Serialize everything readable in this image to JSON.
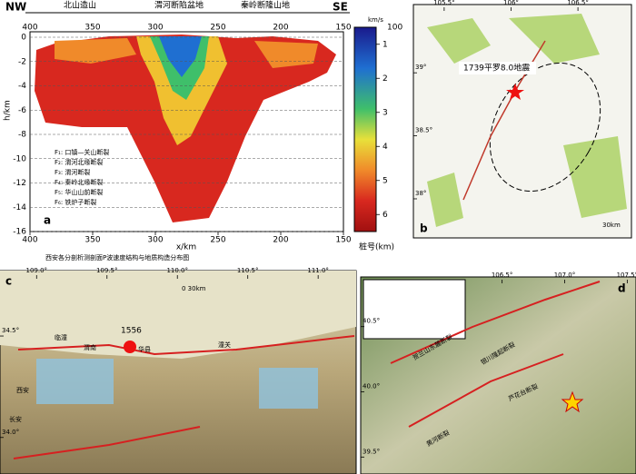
{
  "panel_a": {
    "label": "a",
    "left": "NW",
    "right": "SE",
    "regions": [
      "北山造山",
      "渭河断陷盆地",
      "秦岭断隆山地"
    ],
    "xlabel": "x/km",
    "ylabel": "h/km",
    "xcaption": "桩号(km)",
    "xlim": [
      400,
      150
    ],
    "xticks": [
      400,
      350,
      300,
      250,
      200,
      150
    ],
    "ylim": [
      0,
      -16
    ],
    "yticks": [
      0,
      -2,
      -4,
      -6,
      -8,
      -10,
      -12,
      -14,
      -16
    ],
    "colorbar": {
      "unit": "km/s",
      "top": "100",
      "lim": [
        0.5,
        6.5
      ],
      "ticks": [
        1,
        2,
        3,
        4,
        5,
        6
      ]
    },
    "faults": [
      "F₁: 口镇—关山断裂",
      "F₂: 渭河北缘断裂",
      "F₃: 渭河断裂",
      "F₄: 秦岭北缘断裂",
      "F₅: 华山山前断裂",
      "F₆: 铁炉子断裂"
    ],
    "caption": "西安各分剖析测剖面P波速度结构与地质构造分布图"
  },
  "panel_b": {
    "label": "b",
    "event": "1739平罗8.0地震",
    "scale": "30km",
    "lonlim": [
      105.27,
      106.9
    ],
    "lonticks": [
      {
        "value": 105.5,
        "label": "105.5°"
      },
      {
        "value": 106,
        "label": "106°"
      },
      {
        "value": 106.5,
        "label": "106.5°"
      }
    ],
    "latlim": [
      37.69,
      39.52
    ],
    "latticks": [
      {
        "value": 39,
        "label": "39°"
      },
      {
        "value": 38.5,
        "label": "38.5°"
      },
      {
        "value": 38,
        "label": "38°"
      }
    ]
  },
  "panel_c": {
    "label": "c",
    "event": "1556",
    "places": [
      "华县",
      "渭南",
      "西安",
      "长安",
      "临潼",
      "潼关"
    ],
    "scale": "0      30km",
    "lonlim": [
      108.74,
      111.27
    ],
    "lonticks": [
      {
        "value": 109.0,
        "label": "109.0°"
      },
      {
        "value": 109.5,
        "label": "109.5°"
      },
      {
        "value": 110.0,
        "label": "110.0°"
      },
      {
        "value": 110.5,
        "label": "110.5°"
      },
      {
        "value": 111.0,
        "label": "111.0°"
      }
    ],
    "latlim": [
      33.82,
      34.8
    ],
    "latticks": [
      {
        "value": 34.5,
        "label": "34.5°"
      },
      {
        "value": 34.0,
        "label": "34.0°"
      }
    ]
  },
  "panel_d": {
    "label": "d",
    "faults": [
      "贺兰山东麓断裂",
      "银川隆起断裂",
      "芦花台断裂",
      "黄河断裂"
    ],
    "lonlim": [
      105.37,
      107.57
    ],
    "lonticks": [
      {
        "value": 106.5,
        "label": "106.5°"
      },
      {
        "value": 107.0,
        "label": "107.0°"
      },
      {
        "value": 107.5,
        "label": "107.5°"
      }
    ],
    "latlim": [
      39.37,
      40.86
    ],
    "latticks": [
      {
        "value": 40.5,
        "label": "40.5°"
      },
      {
        "value": 40.0,
        "label": "40.0°"
      },
      {
        "value": 39.5,
        "label": "39.5°"
      }
    ]
  }
}
